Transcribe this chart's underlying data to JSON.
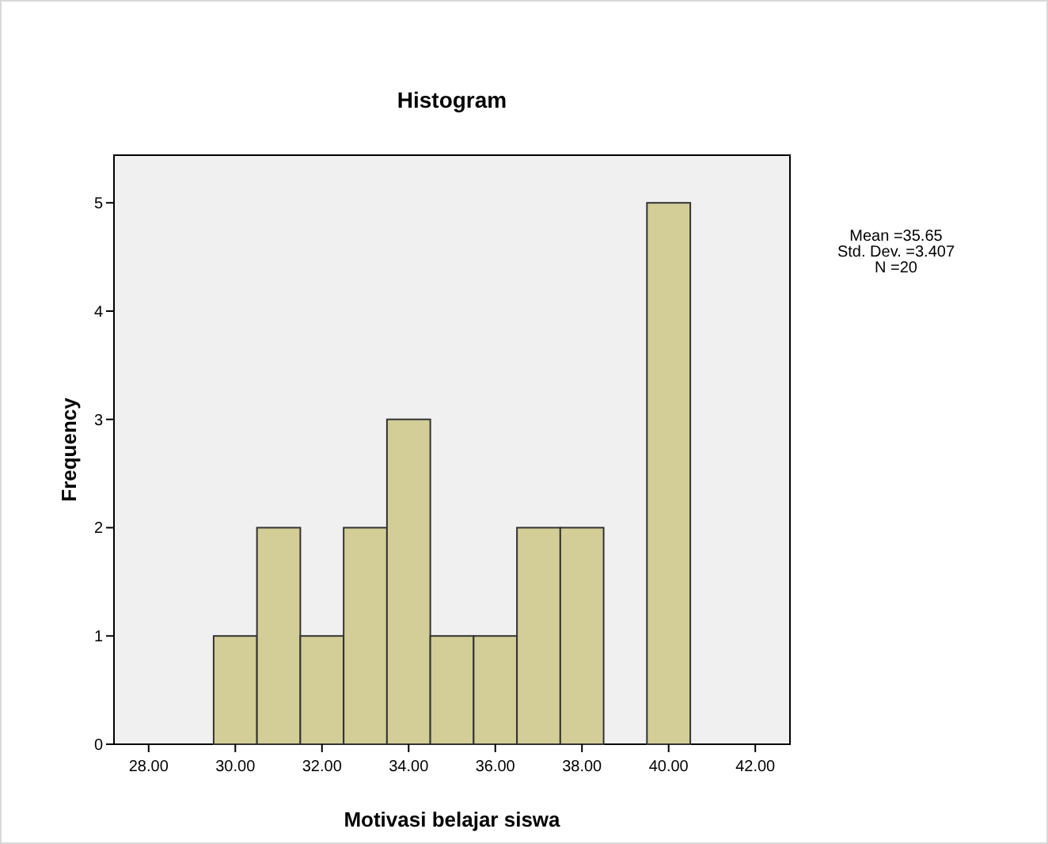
{
  "chart_data": {
    "type": "histogram",
    "title": "Histogram",
    "xlabel": "Motivasi belajar siswa",
    "ylabel": "Frequency",
    "bins": [
      29.5,
      30.5,
      31.5,
      32.5,
      33.5,
      34.5,
      35.5,
      36.5,
      37.5,
      38.5,
      39.5,
      40.5
    ],
    "values": [
      1,
      2,
      1,
      2,
      3,
      1,
      1,
      2,
      2,
      0,
      5
    ],
    "color": "#d3ce97",
    "xlim": [
      27.2,
      42.8
    ],
    "xticks": [
      {
        "value": 28,
        "label": "28.00"
      },
      {
        "value": 30,
        "label": "30.00"
      },
      {
        "value": 32,
        "label": "32.00"
      },
      {
        "value": 34,
        "label": "34.00"
      },
      {
        "value": 36,
        "label": "36.00"
      },
      {
        "value": 38,
        "label": "38.00"
      },
      {
        "value": 40,
        "label": "40.00"
      },
      {
        "value": 42,
        "label": "42.00"
      }
    ],
    "ylim": [
      0,
      5.44
    ],
    "yticks": [
      0,
      1,
      2,
      3,
      4,
      5
    ],
    "annotations": [
      "Mean =35.65",
      "Std. Dev. =3.407",
      "N =20"
    ],
    "grid": false
  }
}
